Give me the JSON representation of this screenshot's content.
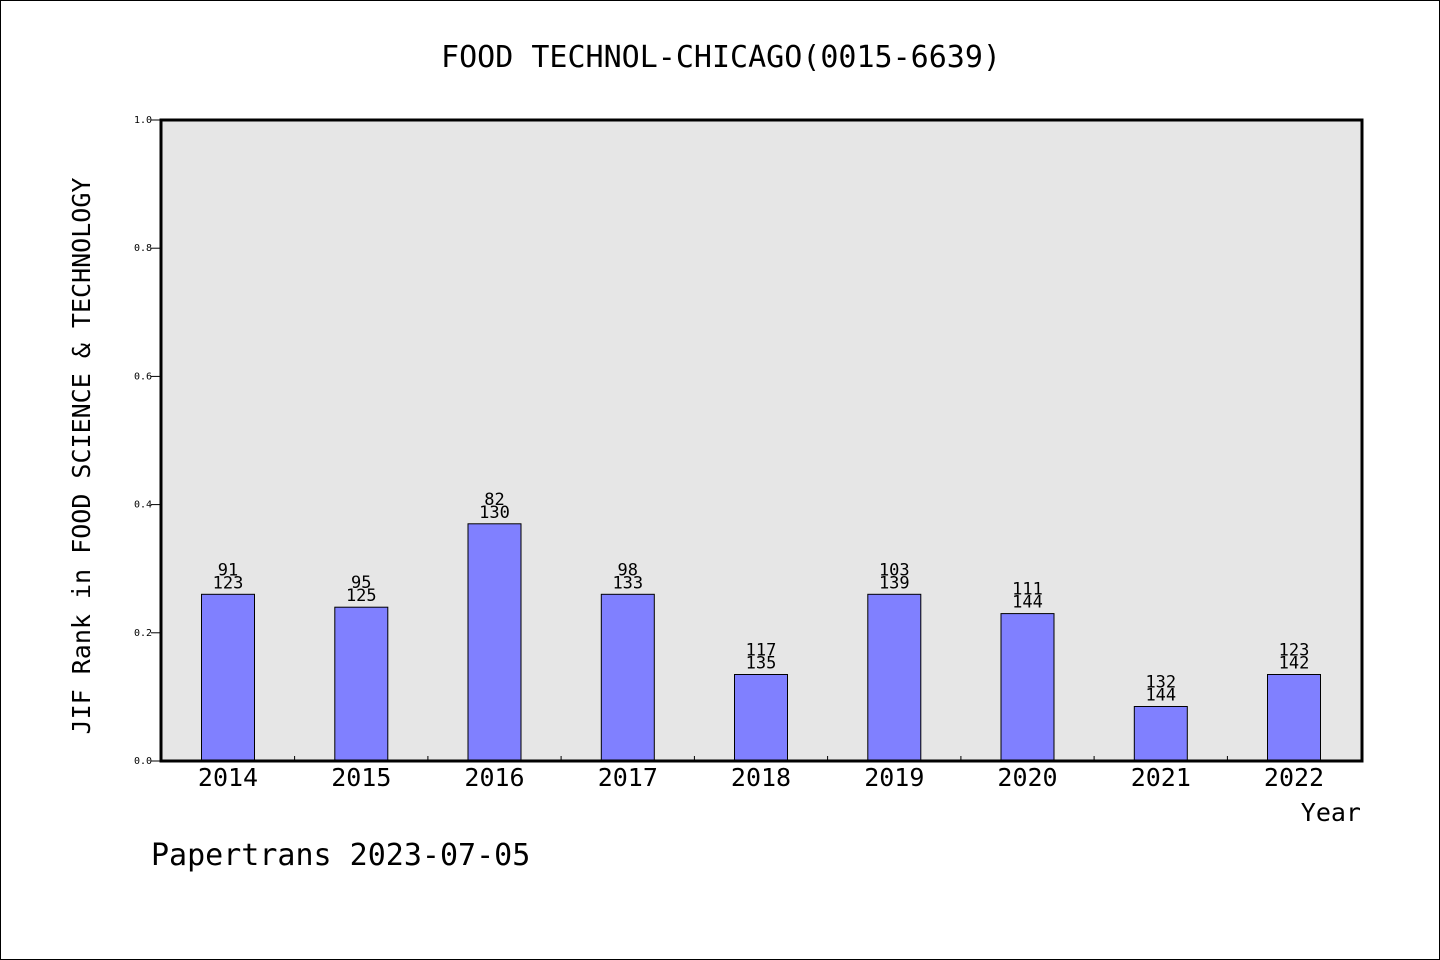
{
  "chart_data": {
    "type": "bar",
    "title": "FOOD TECHNOL-CHICAGO(0015-6639)",
    "xlabel": "Year",
    "ylabel": "JIF Rank in FOOD SCIENCE & TECHNOLOGY",
    "ylim": [
      0,
      1.0
    ],
    "yticks": [
      "0.0",
      "0.2",
      "0.4",
      "0.6",
      "0.8",
      "1.0"
    ],
    "grid": false,
    "categories": [
      "2014",
      "2015",
      "2016",
      "2017",
      "2018",
      "2019",
      "2020",
      "2021",
      "2022"
    ],
    "values": [
      0.26,
      0.24,
      0.37,
      0.26,
      0.135,
      0.26,
      0.23,
      0.085,
      0.135
    ],
    "rank": [
      "91",
      "95",
      "82",
      "98",
      "117",
      "103",
      "111",
      "132",
      "123"
    ],
    "total": [
      "123",
      "125",
      "130",
      "133",
      "135",
      "139",
      "144",
      "144",
      "142"
    ],
    "colors": {
      "bar": "#8080ff",
      "plot_bg": "#e6e6e6",
      "axis": "#000000"
    }
  },
  "footer": {
    "text": "Papertrans 2023-07-05"
  }
}
